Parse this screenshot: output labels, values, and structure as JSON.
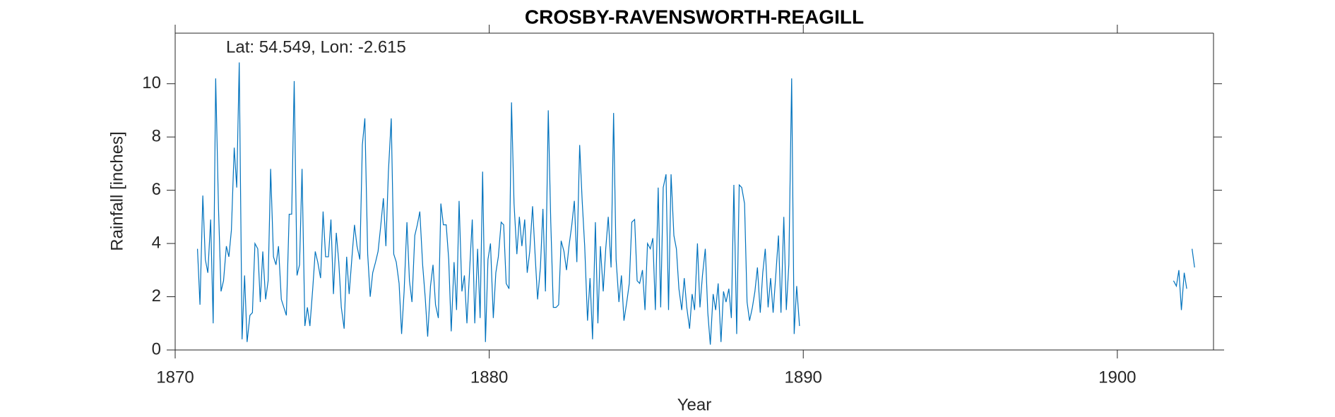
{
  "chart_data": {
    "type": "line",
    "title": "CROSBY-RAVENSWORTH-REAGILL",
    "annotation": "Lat: 54.549, Lon: -2.615",
    "x_label": "Year",
    "y_label": "Rainfall [inches]",
    "xlim": [
      1870,
      1903.4
    ],
    "xticks": [
      1870,
      1880,
      1890,
      1900
    ],
    "ylim": [
      0,
      11.9
    ],
    "yticks": [
      0,
      2,
      4,
      6,
      8,
      10
    ],
    "series": [
      {
        "color": "#0072bd",
        "x": [
          1870.71,
          1870.79,
          1870.88,
          1870.96,
          1871.04,
          1871.13,
          1871.21,
          1871.29,
          1871.38,
          1871.46,
          1871.54,
          1871.63,
          1871.71,
          1871.79,
          1871.88,
          1871.96,
          1872.04,
          1872.13,
          1872.21,
          1872.29,
          1872.38,
          1872.46,
          1872.54,
          1872.63,
          1872.71,
          1872.79,
          1872.88,
          1872.96,
          1873.04,
          1873.13,
          1873.21,
          1873.29,
          1873.38,
          1873.46,
          1873.54,
          1873.63,
          1873.71,
          1873.79,
          1873.88,
          1873.96,
          1874.04,
          1874.13,
          1874.21,
          1874.29,
          1874.38,
          1874.46,
          1874.54,
          1874.63,
          1874.71,
          1874.79,
          1874.88,
          1874.96,
          1875.04,
          1875.13,
          1875.21,
          1875.29,
          1875.38,
          1875.46,
          1875.54,
          1875.63,
          1875.71,
          1875.79,
          1875.88,
          1875.96,
          1876.04,
          1876.13,
          1876.21,
          1876.29,
          1876.38,
          1876.46,
          1876.54,
          1876.63,
          1876.71,
          1876.79,
          1876.88,
          1876.96,
          1877.04,
          1877.13,
          1877.21,
          1877.29,
          1877.38,
          1877.46,
          1877.54,
          1877.63,
          1877.71,
          1877.79,
          1877.88,
          1877.96,
          1878.04,
          1878.13,
          1878.21,
          1878.29,
          1878.38,
          1878.46,
          1878.54,
          1878.63,
          1878.71,
          1878.79,
          1878.88,
          1878.96,
          1879.04,
          1879.13,
          1879.21,
          1879.29,
          1879.38,
          1879.46,
          1879.54,
          1879.63,
          1879.71,
          1879.79,
          1879.88,
          1879.96,
          1880.04,
          1880.13,
          1880.21,
          1880.29,
          1880.38,
          1880.46,
          1880.54,
          1880.63,
          1880.71,
          1880.79,
          1880.88,
          1880.96,
          1881.04,
          1881.13,
          1881.21,
          1881.29,
          1881.38,
          1881.46,
          1881.54,
          1881.63,
          1881.71,
          1881.79,
          1881.88,
          1881.96,
          1882.04,
          1882.13,
          1882.21,
          1882.29,
          1882.38,
          1882.46,
          1882.54,
          1882.63,
          1882.71,
          1882.79,
          1882.88,
          1882.96,
          1883.04,
          1883.13,
          1883.21,
          1883.29,
          1883.38,
          1883.46,
          1883.54,
          1883.63,
          1883.71,
          1883.79,
          1883.88,
          1883.96,
          1884.04,
          1884.13,
          1884.21,
          1884.29,
          1884.38,
          1884.46,
          1884.54,
          1884.63,
          1884.71,
          1884.79,
          1884.88,
          1884.96,
          1885.04,
          1885.13,
          1885.21,
          1885.29,
          1885.38,
          1885.46,
          1885.54,
          1885.63,
          1885.71,
          1885.79,
          1885.88,
          1885.96,
          1886.04,
          1886.13,
          1886.21,
          1886.29,
          1886.38,
          1886.46,
          1886.54,
          1886.63,
          1886.71,
          1886.79,
          1886.88,
          1886.96,
          1887.04,
          1887.13,
          1887.21,
          1887.29,
          1887.38,
          1887.46,
          1887.54,
          1887.63,
          1887.71,
          1887.79,
          1887.88,
          1887.96,
          1888.04,
          1888.13,
          1888.21,
          1888.29,
          1888.38,
          1888.46,
          1888.54,
          1888.63,
          1888.71,
          1888.79,
          1888.88,
          1888.96,
          1889.04,
          1889.13,
          1889.21,
          1889.29,
          1889.38,
          1889.46,
          1889.54,
          1889.63,
          1889.71,
          1889.79,
          1889.88,
          1895.0,
          1901.79,
          1901.88,
          1901.96,
          1902.04,
          1902.13,
          1902.21,
          1902.29,
          1902.38,
          1902.46
        ],
        "values": [
          3.8,
          1.7,
          5.8,
          3.4,
          2.9,
          4.9,
          1.0,
          10.2,
          5.3,
          2.2,
          2.6,
          3.9,
          3.5,
          4.5,
          7.6,
          6.1,
          10.8,
          0.4,
          2.8,
          0.3,
          1.3,
          1.4,
          4.0,
          3.8,
          1.8,
          3.7,
          1.9,
          2.6,
          6.8,
          3.5,
          3.2,
          3.9,
          1.9,
          1.6,
          1.3,
          5.1,
          5.1,
          10.1,
          2.8,
          3.2,
          6.8,
          0.9,
          1.6,
          0.9,
          2.3,
          3.7,
          3.3,
          2.7,
          5.2,
          3.5,
          3.5,
          4.9,
          2.1,
          4.4,
          3.3,
          1.6,
          0.8,
          3.5,
          2.1,
          3.5,
          4.7,
          3.9,
          3.4,
          7.7,
          8.7,
          3.6,
          2.0,
          2.9,
          3.3,
          3.7,
          4.6,
          5.7,
          3.9,
          6.7,
          8.7,
          3.6,
          3.3,
          2.5,
          0.6,
          2.2,
          4.8,
          2.6,
          1.8,
          4.3,
          4.7,
          5.2,
          3.2,
          2.0,
          0.5,
          2.4,
          3.2,
          1.7,
          1.2,
          5.5,
          4.7,
          4.7,
          3.4,
          0.7,
          3.3,
          1.5,
          5.6,
          2.2,
          2.8,
          1.0,
          3.1,
          4.9,
          1.0,
          3.8,
          1.2,
          6.7,
          0.3,
          3.4,
          4.0,
          1.2,
          2.9,
          3.5,
          4.8,
          4.7,
          2.5,
          2.3,
          9.3,
          5.5,
          3.6,
          5.0,
          3.9,
          4.9,
          2.9,
          3.7,
          5.4,
          3.6,
          1.9,
          3.1,
          5.3,
          2.2,
          9.0,
          4.8,
          1.6,
          1.6,
          1.7,
          4.1,
          3.7,
          3.0,
          3.9,
          4.7,
          5.6,
          3.3,
          7.7,
          5.6,
          3.9,
          1.1,
          2.7,
          0.4,
          4.8,
          1.0,
          3.9,
          2.2,
          3.8,
          5.0,
          3.1,
          8.9,
          3.4,
          1.8,
          2.8,
          1.1,
          1.8,
          2.5,
          4.8,
          4.9,
          2.6,
          2.5,
          3.0,
          1.5,
          4.0,
          3.8,
          4.2,
          1.5,
          6.1,
          1.6,
          6.1,
          6.6,
          1.5,
          6.6,
          4.3,
          3.8,
          2.3,
          1.5,
          2.7,
          1.6,
          0.8,
          2.1,
          1.5,
          4.0,
          1.6,
          2.8,
          3.8,
          1.4,
          0.2,
          2.1,
          1.5,
          2.5,
          0.3,
          2.2,
          1.8,
          2.3,
          1.2,
          6.2,
          0.6,
          6.2,
          6.1,
          5.5,
          1.8,
          1.1,
          1.6,
          2.2,
          3.1,
          1.4,
          2.9,
          3.8,
          1.6,
          2.7,
          1.4,
          2.9,
          4.3,
          1.4,
          5.0,
          1.5,
          3.2,
          10.2,
          0.6,
          2.4,
          0.9,
          null,
          2.6,
          2.4,
          3.0,
          1.5,
          2.9,
          2.3,
          null,
          3.8,
          3.1
        ]
      }
    ]
  }
}
